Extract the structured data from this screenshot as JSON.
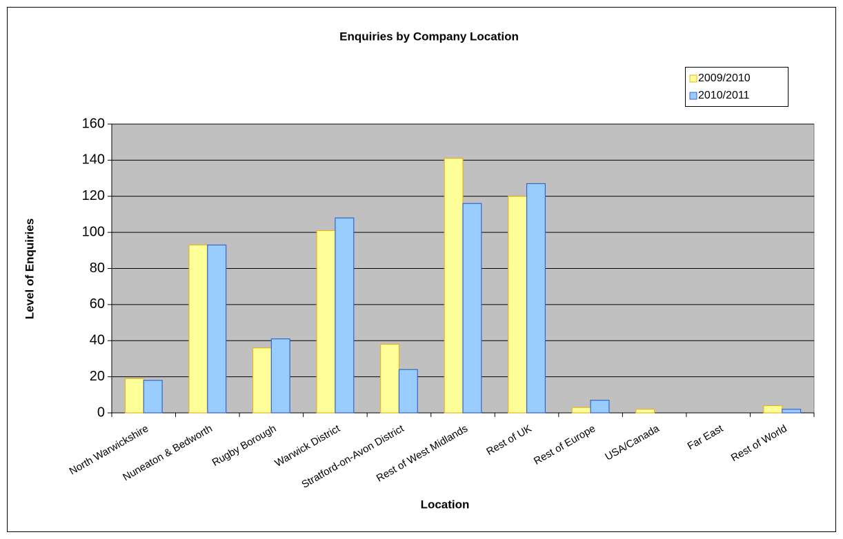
{
  "chart_data": {
    "type": "bar",
    "title": "Enquiries by Company Location",
    "x_label": "Location",
    "y_label": "Level of Enquiries",
    "categories": [
      "North Warwickshire",
      "Nuneaton & Bedworth",
      "Rugby Borough",
      "Warwick District",
      "Stratford-on-Avon District",
      "Rest of West Midlands",
      "Rest of UK",
      "Rest of Europe",
      "USA/Canada",
      "Far East",
      "Rest of World"
    ],
    "series": [
      {
        "name": "2009/2010",
        "color": "#ffff99",
        "edge": "#e6b422",
        "values": [
          19,
          93,
          36,
          101,
          38,
          141,
          120,
          3,
          2,
          0,
          4
        ]
      },
      {
        "name": "2010/2011",
        "color": "#99ccff",
        "edge": "#3366cc",
        "values": [
          18,
          93,
          41,
          108,
          24,
          116,
          127,
          7,
          0,
          0,
          2
        ]
      }
    ],
    "ylim": [
      0,
      160
    ],
    "yticks": [
      0,
      20,
      40,
      60,
      80,
      100,
      120,
      140,
      160
    ],
    "grid": true,
    "plot_background": "#c0c0c0",
    "legend": "top-right"
  }
}
